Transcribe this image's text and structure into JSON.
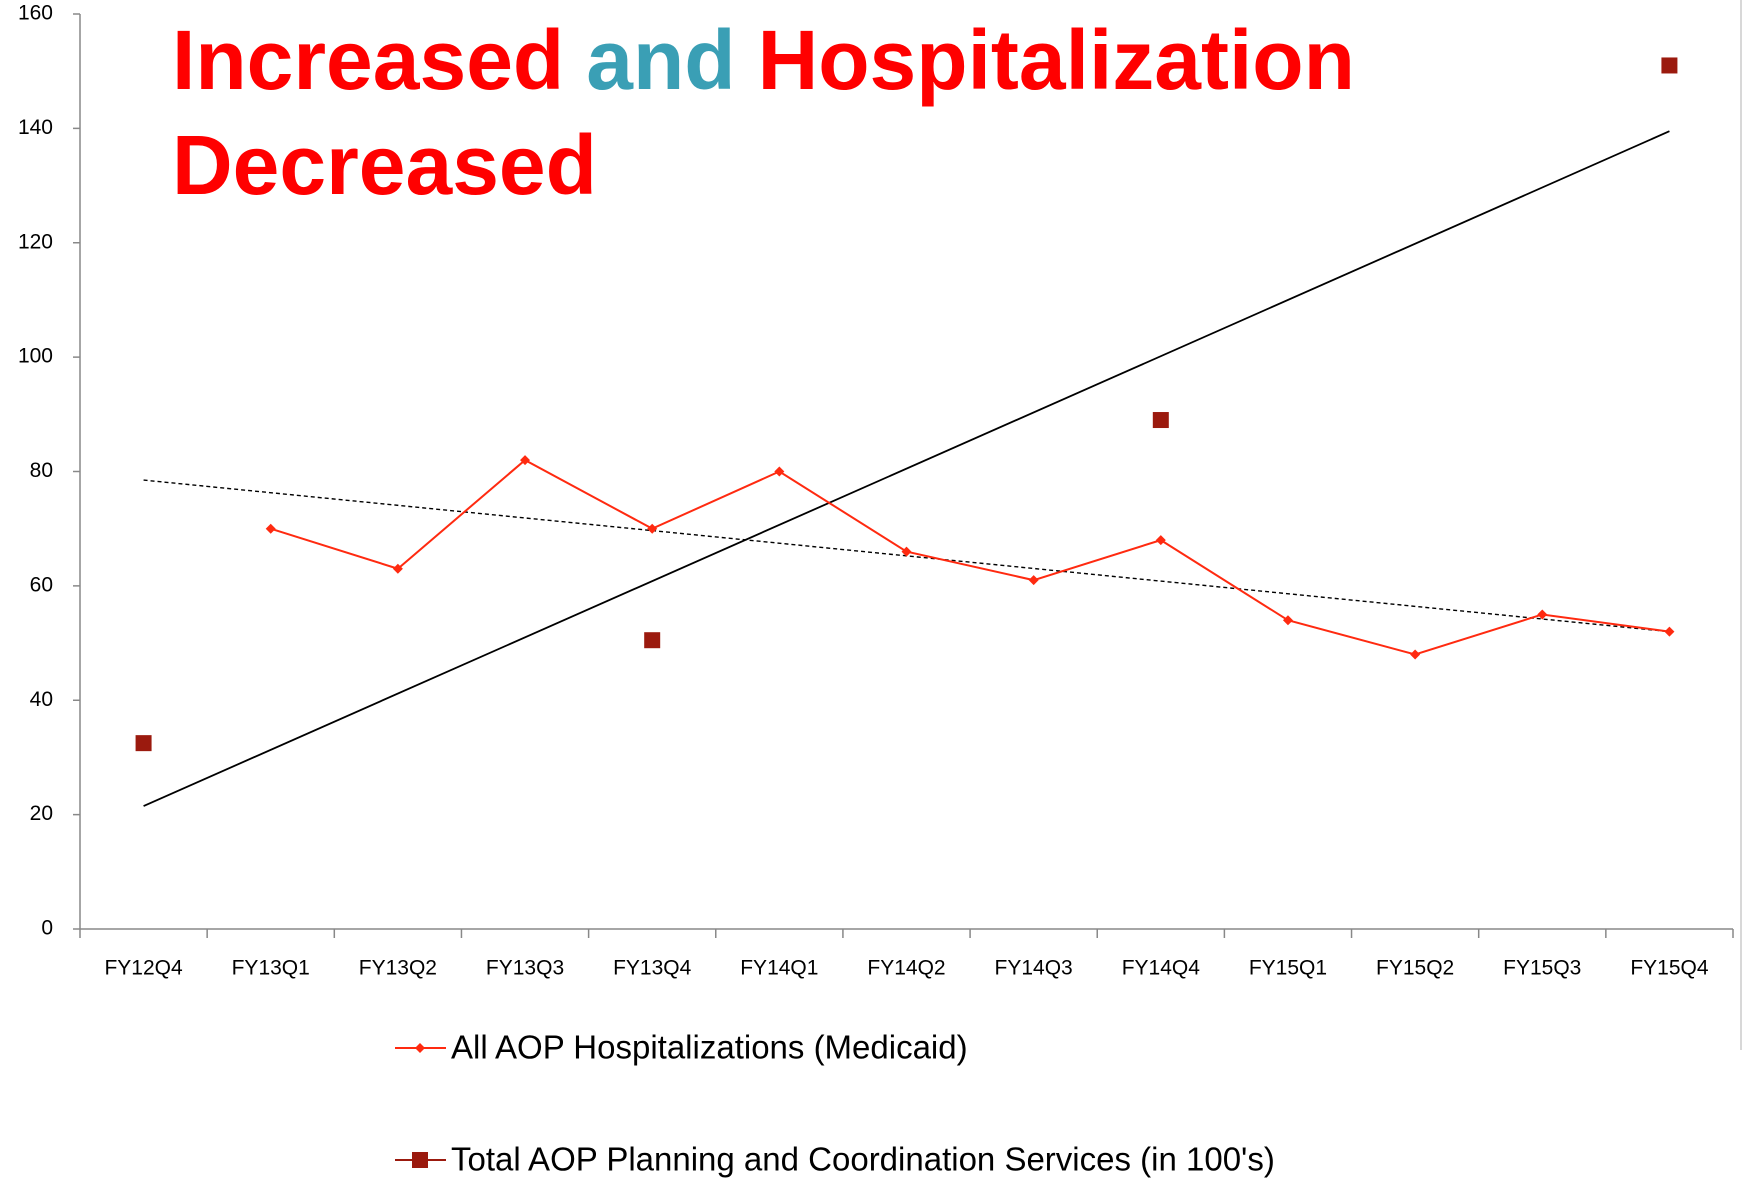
{
  "chart_data": {
    "type": "line",
    "title": {
      "lines": [
        [
          {
            "text": "Increased",
            "color": "#ff0000"
          },
          {
            "text": "and",
            "color": "#3a9fb5"
          },
          {
            "text": "Hospitalization",
            "color": "#ff0000"
          }
        ],
        [
          {
            "text": "Decreased",
            "color": "#ff0000"
          }
        ]
      ]
    },
    "categories": [
      "FY12Q4",
      "FY13Q1",
      "FY13Q2",
      "FY13Q3",
      "FY13Q4",
      "FY14Q1",
      "FY14Q2",
      "FY14Q3",
      "FY14Q4",
      "FY15Q1",
      "FY15Q2",
      "FY15Q3",
      "FY15Q4"
    ],
    "series": [
      {
        "name": "All AOP Hospitalizations (Medicaid)",
        "color": "#ff2a10",
        "marker": "diamond",
        "line": true,
        "values": [
          null,
          70,
          63,
          82,
          70,
          80,
          66,
          61,
          68,
          54,
          48,
          55,
          52
        ]
      },
      {
        "name": "Total AOP Planning and Coordination Services (in 100's)",
        "color": "#9b1a0e",
        "marker": "square",
        "line": false,
        "values": [
          32.5,
          null,
          null,
          null,
          50.5,
          null,
          null,
          null,
          89,
          null,
          null,
          null,
          151
        ]
      }
    ],
    "trendlines": [
      {
        "values": [
          78.5,
          52
        ],
        "color": "#000000",
        "dashed": true
      },
      {
        "values": [
          21.5,
          139.5
        ],
        "color": "#000000",
        "dashed": false
      }
    ],
    "ylim": [
      0,
      160
    ],
    "yticks": [
      0,
      20,
      40,
      60,
      80,
      100,
      120,
      140,
      160
    ],
    "grid": false,
    "legend": "bottom"
  }
}
